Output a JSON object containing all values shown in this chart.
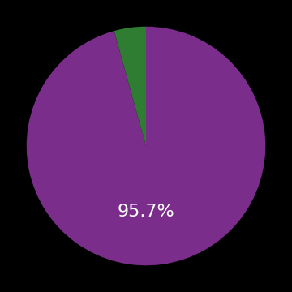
{
  "slices": [
    95.7,
    4.3
  ],
  "colors": [
    "#7b2d8b",
    "#2e7d32"
  ],
  "label_text": "95.7%",
  "label_color": "#ffffff",
  "label_fontsize": 16,
  "background_color": "#000000",
  "startangle": 90,
  "counterclock": false
}
